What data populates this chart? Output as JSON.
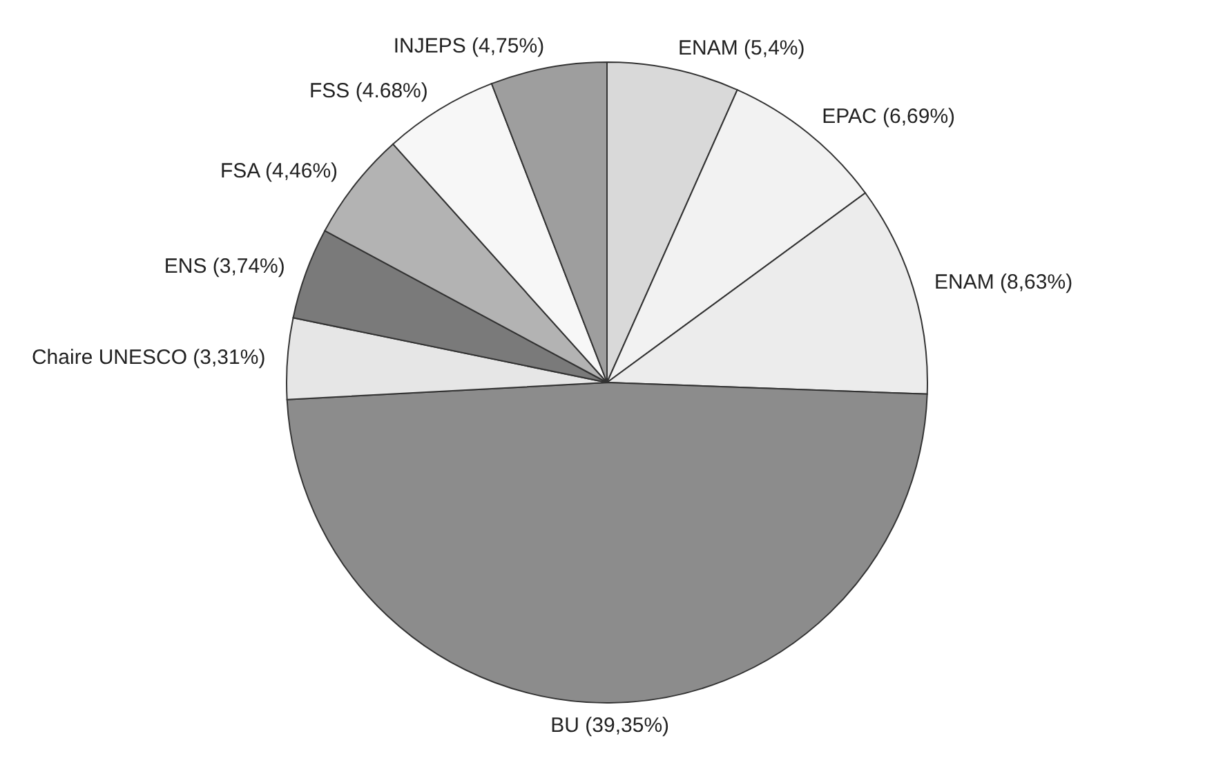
{
  "chart_data": {
    "type": "pie",
    "categories": [
      "ENAM (5,4%)",
      "EPAC (6,69%)",
      "ENAM (8,63%)",
      "BU  (39,35%)",
      "Chaire UNESCO (3,31%)",
      "ENS (3,74%)",
      "FSA (4,46%)",
      "FSS (4.68%)",
      "INJEPS (4,75%)"
    ],
    "values": [
      5.4,
      6.69,
      8.63,
      39.35,
      3.31,
      3.74,
      4.46,
      4.68,
      4.75
    ],
    "colors": [
      "#d9d9d9",
      "#f2f2f2",
      "#ececec",
      "#8c8c8c",
      "#e6e6e6",
      "#7a7a7a",
      "#b3b3b3",
      "#f7f7f7",
      "#9e9e9e"
    ]
  }
}
